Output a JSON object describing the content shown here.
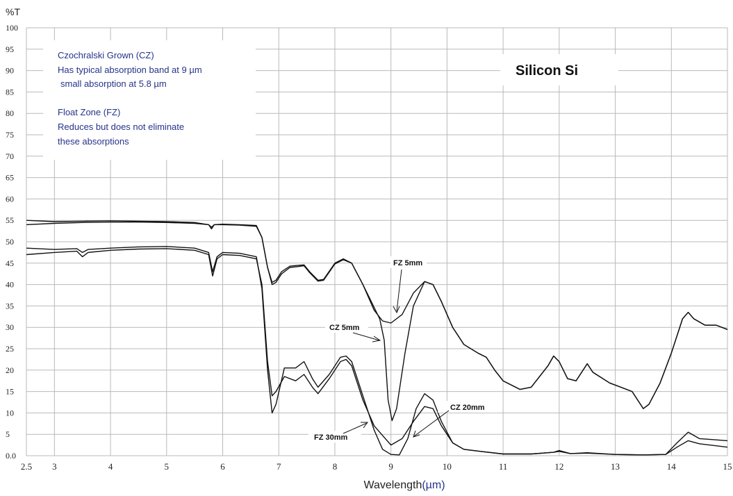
{
  "chart_data": {
    "type": "line",
    "title": "Silicon  Si",
    "ylabel": "%T",
    "xlabel": "Wavelength",
    "xlabel_unit": "(µm)",
    "xlim": [
      2.5,
      15
    ],
    "ylim": [
      0,
      100
    ],
    "x_ticks": [
      2.5,
      3,
      4,
      5,
      6,
      7,
      8,
      9,
      10,
      11,
      12,
      13,
      14,
      15
    ],
    "x_tick_labels": [
      "2.5",
      "3",
      "4",
      "5",
      "6",
      "7",
      "8",
      "9",
      "10",
      "11",
      "12",
      "13",
      "14",
      "15"
    ],
    "y_ticks": [
      0,
      5,
      10,
      15,
      20,
      25,
      30,
      35,
      40,
      45,
      50,
      55,
      60,
      65,
      70,
      75,
      80,
      85,
      90,
      95,
      100
    ],
    "y_tick_labels": [
      "0.0",
      "5",
      "10",
      "15",
      "20",
      "25",
      "30",
      "35",
      "40",
      "45",
      "50",
      "55",
      "60",
      "65",
      "70",
      "75",
      "80",
      "85",
      "90",
      "95",
      "100"
    ],
    "grid": true,
    "notes": [
      "Czochralski Grown (CZ)",
      "Has typical absorption band at 9 µm",
      "small absorption at 5.8 µm",
      "Float Zone (FZ)",
      "Reduces but does not eliminate",
      "these absorptions"
    ],
    "series": [
      {
        "name": "FZ 5mm",
        "points": [
          [
            2.5,
            54
          ],
          [
            3,
            54.3
          ],
          [
            3.5,
            54.5
          ],
          [
            4,
            54.6
          ],
          [
            4.5,
            54.6
          ],
          [
            5,
            54.5
          ],
          [
            5.5,
            54.3
          ],
          [
            5.75,
            54
          ],
          [
            5.8,
            53.4
          ],
          [
            5.85,
            54
          ],
          [
            6,
            54
          ],
          [
            6.3,
            53.9
          ],
          [
            6.6,
            53.6
          ],
          [
            6.7,
            51
          ],
          [
            6.8,
            44
          ],
          [
            6.88,
            40.5
          ],
          [
            6.95,
            41
          ],
          [
            7.05,
            43
          ],
          [
            7.2,
            44.3
          ],
          [
            7.35,
            44.5
          ],
          [
            7.45,
            44.6
          ],
          [
            7.55,
            43
          ],
          [
            7.7,
            41
          ],
          [
            7.8,
            41.2
          ],
          [
            8,
            45
          ],
          [
            8.15,
            46
          ],
          [
            8.3,
            45
          ],
          [
            8.5,
            40
          ],
          [
            8.7,
            34
          ],
          [
            8.85,
            31.5
          ],
          [
            9,
            31
          ],
          [
            9.2,
            33
          ],
          [
            9.4,
            38
          ],
          [
            9.6,
            40.7
          ],
          [
            9.75,
            40
          ],
          [
            9.9,
            36
          ],
          [
            10.1,
            30
          ],
          [
            10.3,
            26
          ],
          [
            10.55,
            24
          ],
          [
            10.7,
            23
          ],
          [
            10.85,
            20
          ],
          [
            11,
            17.5
          ],
          [
            11.3,
            15.5
          ],
          [
            11.5,
            16
          ],
          [
            11.8,
            21
          ],
          [
            11.9,
            23.3
          ],
          [
            12,
            22
          ],
          [
            12.15,
            18
          ],
          [
            12.3,
            17.5
          ],
          [
            12.5,
            21.5
          ],
          [
            12.6,
            19.5
          ],
          [
            12.9,
            17
          ],
          [
            13.3,
            15
          ],
          [
            13.5,
            11
          ],
          [
            13.6,
            12
          ],
          [
            13.8,
            17
          ],
          [
            14,
            24
          ],
          [
            14.2,
            32
          ],
          [
            14.3,
            33.5
          ],
          [
            14.4,
            32
          ],
          [
            14.6,
            30.5
          ],
          [
            14.8,
            30.5
          ],
          [
            15,
            29.5
          ]
        ]
      },
      {
        "name": "CZ 5mm",
        "points": [
          [
            2.5,
            55
          ],
          [
            3,
            54.7
          ],
          [
            3.5,
            54.8
          ],
          [
            4,
            54.9
          ],
          [
            4.5,
            54.8
          ],
          [
            5,
            54.7
          ],
          [
            5.5,
            54.5
          ],
          [
            5.75,
            54
          ],
          [
            5.8,
            53
          ],
          [
            5.85,
            54
          ],
          [
            6,
            54.1
          ],
          [
            6.3,
            54
          ],
          [
            6.6,
            53.8
          ],
          [
            6.7,
            51
          ],
          [
            6.8,
            44
          ],
          [
            6.88,
            40
          ],
          [
            6.95,
            40.5
          ],
          [
            7.05,
            42.5
          ],
          [
            7.2,
            44
          ],
          [
            7.35,
            44.2
          ],
          [
            7.45,
            44.4
          ],
          [
            7.55,
            42.8
          ],
          [
            7.7,
            40.8
          ],
          [
            7.8,
            41
          ],
          [
            8,
            44.8
          ],
          [
            8.15,
            45.8
          ],
          [
            8.3,
            45
          ],
          [
            8.5,
            40
          ],
          [
            8.65,
            36
          ],
          [
            8.8,
            32
          ],
          [
            8.88,
            27
          ],
          [
            8.95,
            13
          ],
          [
            9.02,
            8.2
          ],
          [
            9.1,
            11
          ],
          [
            9.25,
            24
          ],
          [
            9.4,
            35
          ],
          [
            9.6,
            40.7
          ],
          [
            9.75,
            40
          ],
          [
            9.9,
            36
          ],
          [
            10.1,
            30
          ],
          [
            10.3,
            26
          ],
          [
            10.55,
            24
          ],
          [
            10.7,
            23
          ],
          [
            10.85,
            20
          ],
          [
            11,
            17.5
          ],
          [
            11.3,
            15.5
          ],
          [
            11.5,
            16
          ],
          [
            11.8,
            21
          ],
          [
            11.9,
            23.3
          ],
          [
            12,
            22
          ],
          [
            12.15,
            18
          ],
          [
            12.3,
            17.5
          ],
          [
            12.5,
            21.5
          ],
          [
            12.6,
            19.5
          ],
          [
            12.9,
            17
          ],
          [
            13.3,
            15
          ],
          [
            13.5,
            11
          ],
          [
            13.6,
            12
          ],
          [
            13.8,
            17
          ],
          [
            14,
            24
          ],
          [
            14.2,
            32
          ],
          [
            14.3,
            33.5
          ],
          [
            14.4,
            32
          ],
          [
            14.6,
            30.5
          ],
          [
            14.8,
            30.5
          ],
          [
            15,
            29.5
          ]
        ]
      },
      {
        "name": "FZ 30mm",
        "points": [
          [
            2.5,
            47
          ],
          [
            3,
            47.5
          ],
          [
            3.4,
            47.8
          ],
          [
            3.5,
            46.5
          ],
          [
            3.6,
            47.5
          ],
          [
            4,
            48
          ],
          [
            4.5,
            48.3
          ],
          [
            5,
            48.4
          ],
          [
            5.5,
            48
          ],
          [
            5.75,
            47
          ],
          [
            5.82,
            42
          ],
          [
            5.9,
            46
          ],
          [
            6,
            47
          ],
          [
            6.3,
            46.8
          ],
          [
            6.6,
            46
          ],
          [
            6.7,
            40
          ],
          [
            6.8,
            22
          ],
          [
            6.88,
            14
          ],
          [
            6.95,
            15
          ],
          [
            7.1,
            18.5
          ],
          [
            7.3,
            17.5
          ],
          [
            7.45,
            19
          ],
          [
            7.6,
            16
          ],
          [
            7.7,
            14.5
          ],
          [
            7.9,
            18
          ],
          [
            8.1,
            22
          ],
          [
            8.2,
            22.5
          ],
          [
            8.3,
            21
          ],
          [
            8.5,
            13
          ],
          [
            8.7,
            7
          ],
          [
            8.9,
            4
          ],
          [
            9,
            2.5
          ],
          [
            9.2,
            4
          ],
          [
            9.4,
            8
          ],
          [
            9.6,
            11.5
          ],
          [
            9.75,
            11
          ],
          [
            9.9,
            7
          ],
          [
            10.1,
            3
          ],
          [
            10.3,
            1.5
          ],
          [
            10.6,
            1
          ],
          [
            11,
            0.4
          ],
          [
            11.5,
            0.4
          ],
          [
            11.9,
            0.8
          ],
          [
            12,
            1
          ],
          [
            12.2,
            0.5
          ],
          [
            12.5,
            0.6
          ],
          [
            13,
            0.3
          ],
          [
            13.5,
            0.2
          ],
          [
            13.9,
            0.3
          ],
          [
            14.1,
            2
          ],
          [
            14.3,
            3.5
          ],
          [
            14.5,
            2.8
          ],
          [
            15,
            2
          ]
        ]
      },
      {
        "name": "CZ 20mm",
        "points": [
          [
            2.5,
            48.5
          ],
          [
            3,
            48.2
          ],
          [
            3.4,
            48.4
          ],
          [
            3.5,
            47.5
          ],
          [
            3.6,
            48.2
          ],
          [
            4,
            48.5
          ],
          [
            4.5,
            48.8
          ],
          [
            5,
            48.9
          ],
          [
            5.5,
            48.5
          ],
          [
            5.75,
            47.5
          ],
          [
            5.82,
            43
          ],
          [
            5.9,
            46.5
          ],
          [
            6,
            47.5
          ],
          [
            6.3,
            47.3
          ],
          [
            6.6,
            46.5
          ],
          [
            6.7,
            39
          ],
          [
            6.8,
            20
          ],
          [
            6.88,
            10
          ],
          [
            6.95,
            12
          ],
          [
            7.1,
            20.5
          ],
          [
            7.3,
            20.5
          ],
          [
            7.45,
            22
          ],
          [
            7.6,
            18
          ],
          [
            7.7,
            16
          ],
          [
            7.9,
            19
          ],
          [
            8.1,
            23
          ],
          [
            8.2,
            23.3
          ],
          [
            8.3,
            22
          ],
          [
            8.5,
            14
          ],
          [
            8.7,
            6
          ],
          [
            8.85,
            1.5
          ],
          [
            9,
            0.3
          ],
          [
            9.15,
            0.2
          ],
          [
            9.3,
            4
          ],
          [
            9.45,
            11
          ],
          [
            9.6,
            14.5
          ],
          [
            9.75,
            13
          ],
          [
            9.9,
            8
          ],
          [
            10.1,
            3
          ],
          [
            10.3,
            1.5
          ],
          [
            10.6,
            1
          ],
          [
            11,
            0.4
          ],
          [
            11.5,
            0.4
          ],
          [
            11.9,
            0.8
          ],
          [
            12,
            1.2
          ],
          [
            12.2,
            0.5
          ],
          [
            12.5,
            0.7
          ],
          [
            13,
            0.3
          ],
          [
            13.5,
            0.2
          ],
          [
            13.9,
            0.3
          ],
          [
            14.1,
            3
          ],
          [
            14.3,
            5.5
          ],
          [
            14.5,
            4
          ],
          [
            15,
            3.5
          ]
        ]
      }
    ],
    "curve_labels": [
      {
        "text": "FZ 5mm",
        "series": "FZ 5mm"
      },
      {
        "text": "CZ 5mm",
        "series": "CZ 5mm"
      },
      {
        "text": "FZ 30mm",
        "series": "FZ 30mm"
      },
      {
        "text": "CZ 20mm",
        "series": "CZ 20mm"
      }
    ]
  }
}
